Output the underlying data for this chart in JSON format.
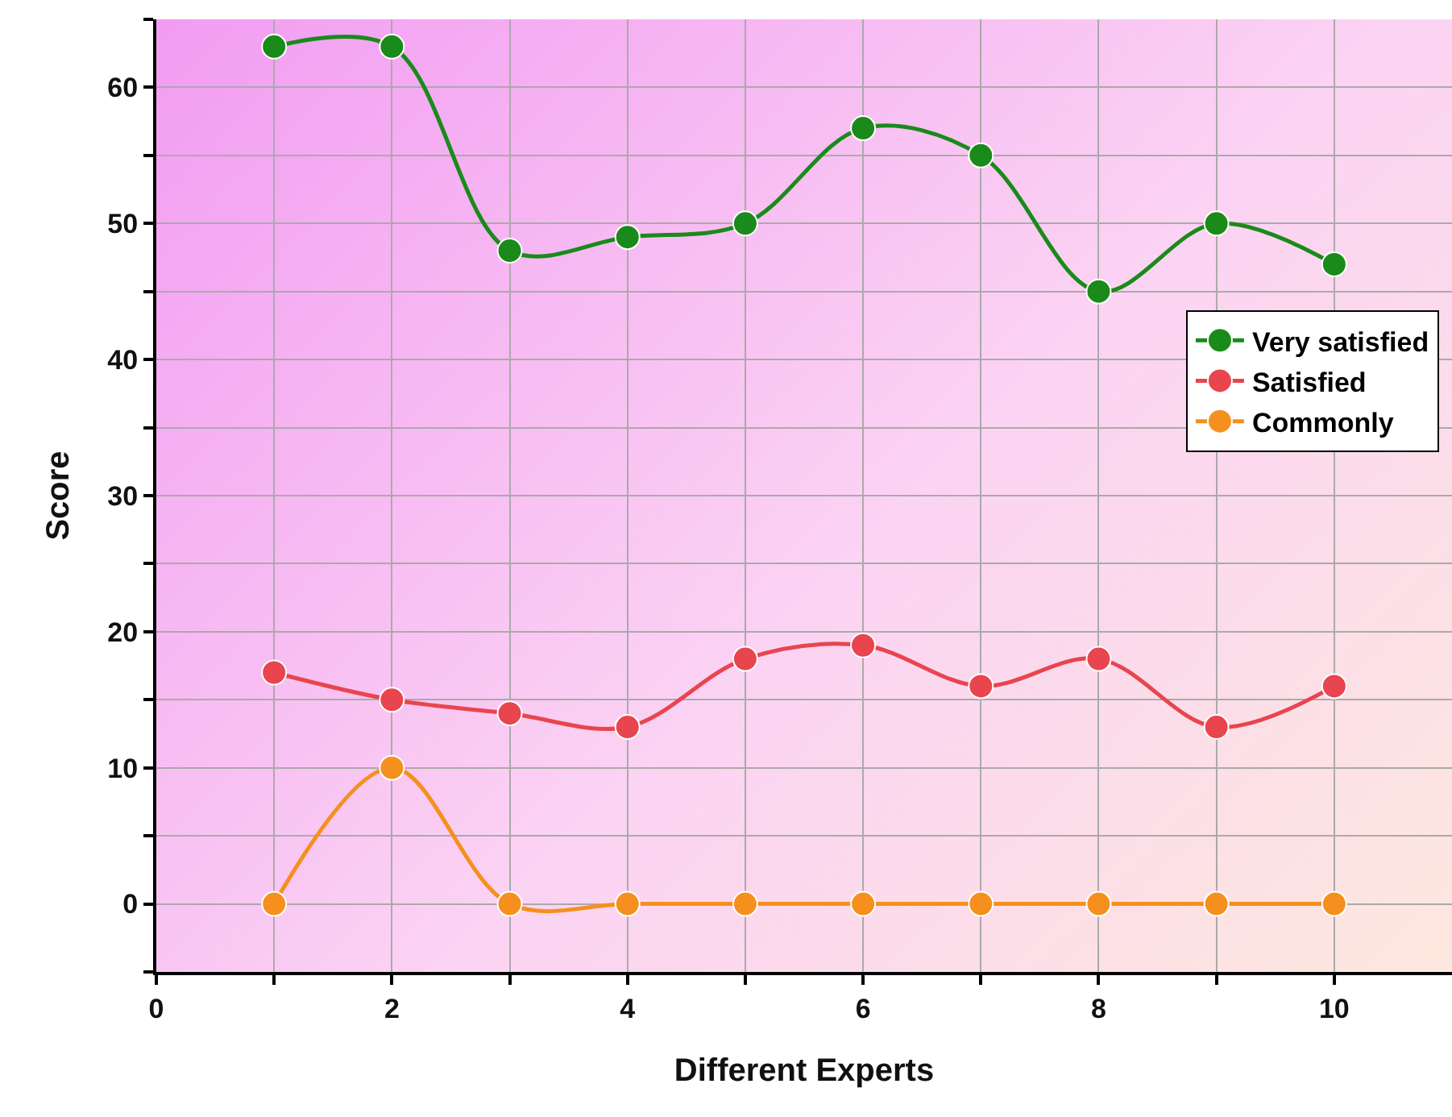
{
  "chart_data": {
    "type": "line",
    "xlabel": "Different Experts",
    "ylabel": "Score",
    "x": [
      1,
      2,
      3,
      4,
      5,
      6,
      7,
      8,
      9,
      10
    ],
    "series": [
      {
        "name": "Very satisfied",
        "color": "#1a8a1a",
        "values": [
          63,
          63,
          48,
          49,
          50,
          57,
          55,
          45,
          50,
          47
        ]
      },
      {
        "name": "Satisfied",
        "color": "#e8454f",
        "values": [
          17,
          15,
          14,
          13,
          18,
          19,
          16,
          18,
          13,
          16
        ]
      },
      {
        "name": "Commonly",
        "color": "#f5901e",
        "values": [
          0,
          10,
          0,
          0,
          0,
          0,
          0,
          0,
          0,
          0
        ]
      }
    ],
    "xlim": [
      0,
      11
    ],
    "xticks": [
      0,
      {
        "value": 1,
        "label": null
      },
      2,
      {
        "value": 3,
        "label": null
      },
      4,
      {
        "value": 5,
        "label": null
      },
      6,
      {
        "value": 7,
        "label": null
      },
      8,
      {
        "value": 9,
        "label": null
      },
      10
    ],
    "ylim": [
      -5,
      65
    ],
    "yticks": [
      {
        "value": -5,
        "label": null
      },
      0,
      {
        "value": 5,
        "label": null
      },
      10,
      {
        "value": 15,
        "label": null
      },
      20,
      {
        "value": 25,
        "label": null
      },
      30,
      {
        "value": 35,
        "label": null
      },
      40,
      {
        "value": 45,
        "label": null
      },
      50,
      {
        "value": 55,
        "label": null
      },
      60,
      {
        "value": 65,
        "label": null
      }
    ],
    "grid": true,
    "legend": "right",
    "marker": "circle",
    "line_style": "solid"
  }
}
